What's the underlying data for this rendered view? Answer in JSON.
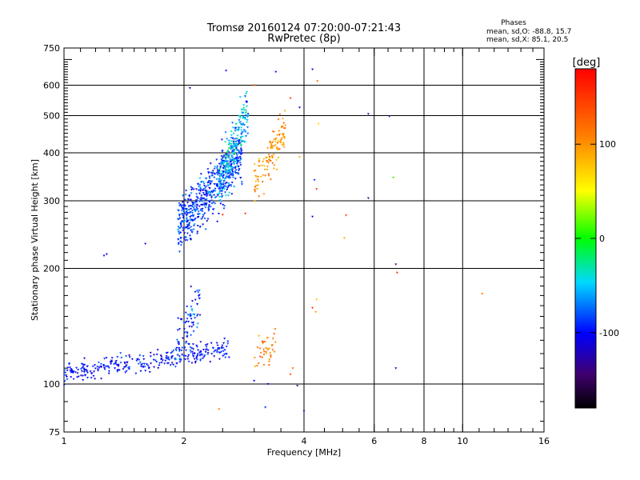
{
  "header": {
    "title_line1": "Tromsø 20160124 07:20:00-07:21:43",
    "title_line2": "RwPretec (8p)",
    "phases_title": "Phases",
    "phases_o": "mean, sd,O: -88.8, 15.7",
    "phases_x": "mean, sd,X:  85.1, 20.5"
  },
  "colorbar": {
    "unit_label": "[deg]",
    "tick_labels": [
      "100",
      "0",
      "-100"
    ],
    "tick_values": [
      100,
      0,
      -100
    ],
    "range": [
      -180,
      180
    ]
  },
  "chart_data": {
    "type": "scatter",
    "title": "Tromsø 20160124 07:20:00-07:21:43",
    "subtitle": "RwPretec (8p)",
    "xlabel": "Frequency [MHz]",
    "ylabel": "Stationary phase Virtual Height [km]",
    "x_scale": "log",
    "y_scale": "log",
    "xlim": [
      1,
      16
    ],
    "ylim": [
      75,
      750
    ],
    "x_ticks": [
      1,
      2,
      4,
      6,
      8,
      10,
      16
    ],
    "x_tick_labels": [
      "1",
      "2",
      "4",
      "6",
      "8",
      "10",
      "16"
    ],
    "x_grid": [
      2,
      4,
      6,
      8,
      10
    ],
    "y_ticks": [
      75,
      100,
      200,
      300,
      400,
      500,
      600,
      750
    ],
    "y_tick_labels": [
      "75",
      "100",
      "200",
      "300",
      "400",
      "500",
      "600",
      "750"
    ],
    "y_grid": [
      100,
      200,
      300,
      400,
      500,
      600
    ],
    "color_encoding": "phase [deg]",
    "clusters": [
      {
        "f_min": 1.0,
        "f_max": 2.6,
        "h_start": 106,
        "h_end": 124,
        "spread": 0.05,
        "phase_mean": -100,
        "phase_sd": 12,
        "n": 300
      },
      {
        "f_min": 1.9,
        "f_max": 2.2,
        "h_start": 122,
        "h_end": 165,
        "spread": 0.12,
        "phase_mean": -90,
        "phase_sd": 20,
        "n": 80
      },
      {
        "f_min": 3.0,
        "f_max": 3.4,
        "h_start": 118,
        "h_end": 128,
        "spread": 0.08,
        "phase_mean": 110,
        "phase_sd": 15,
        "n": 40
      },
      {
        "f_min": 1.93,
        "f_max": 2.8,
        "h_start": 255,
        "h_end": 400,
        "spread": 0.13,
        "phase_mean": -88,
        "phase_sd": 16,
        "n": 550
      },
      {
        "f_min": 2.45,
        "f_max": 2.9,
        "h_start": 330,
        "h_end": 520,
        "spread": 0.13,
        "phase_mean": -55,
        "phase_sd": 22,
        "n": 250
      },
      {
        "f_min": 3.0,
        "f_max": 3.6,
        "h_start": 330,
        "h_end": 470,
        "spread": 0.11,
        "phase_mean": 100,
        "phase_sd": 18,
        "n": 120
      }
    ],
    "scattered_points": [
      {
        "f": 1.28,
        "h": 218,
        "phase": -110
      },
      {
        "f": 1.26,
        "h": 216,
        "phase": -105
      },
      {
        "f": 1.6,
        "h": 232,
        "phase": -115
      },
      {
        "f": 2.07,
        "h": 590,
        "phase": -120
      },
      {
        "f": 2.55,
        "h": 655,
        "phase": -100
      },
      {
        "f": 3.4,
        "h": 650,
        "phase": -105
      },
      {
        "f": 3.0,
        "h": 600,
        "phase": 120
      },
      {
        "f": 3.7,
        "h": 555,
        "phase": 150
      },
      {
        "f": 3.9,
        "h": 525,
        "phase": -110
      },
      {
        "f": 4.2,
        "h": 660,
        "phase": -110
      },
      {
        "f": 4.32,
        "h": 615,
        "phase": 120
      },
      {
        "f": 4.35,
        "h": 476,
        "phase": 70
      },
      {
        "f": 4.25,
        "h": 340,
        "phase": -90
      },
      {
        "f": 4.3,
        "h": 322,
        "phase": 150
      },
      {
        "f": 4.2,
        "h": 273,
        "phase": -110
      },
      {
        "f": 5.1,
        "h": 275,
        "phase": 140
      },
      {
        "f": 5.05,
        "h": 240,
        "phase": 90
      },
      {
        "f": 5.8,
        "h": 505,
        "phase": -120
      },
      {
        "f": 5.8,
        "h": 305,
        "phase": -130
      },
      {
        "f": 6.55,
        "h": 498,
        "phase": -125
      },
      {
        "f": 6.7,
        "h": 345,
        "phase": 10
      },
      {
        "f": 6.8,
        "h": 205,
        "phase": -140
      },
      {
        "f": 6.85,
        "h": 195,
        "phase": 160
      },
      {
        "f": 6.8,
        "h": 110,
        "phase": -110
      },
      {
        "f": 11.2,
        "h": 172,
        "phase": 110
      },
      {
        "f": 4.3,
        "h": 166,
        "phase": 80
      },
      {
        "f": 4.2,
        "h": 158,
        "phase": 150
      },
      {
        "f": 4.28,
        "h": 154,
        "phase": 90
      },
      {
        "f": 3.75,
        "h": 110,
        "phase": 120
      },
      {
        "f": 3.7,
        "h": 106,
        "phase": 140
      },
      {
        "f": 3.85,
        "h": 99,
        "phase": -140
      },
      {
        "f": 3.0,
        "h": 102,
        "phase": -100
      },
      {
        "f": 3.25,
        "h": 100,
        "phase": -110
      },
      {
        "f": 4.0,
        "h": 85,
        "phase": -120
      },
      {
        "f": 3.2,
        "h": 87,
        "phase": -90
      },
      {
        "f": 2.45,
        "h": 86,
        "phase": 110
      },
      {
        "f": 2.5,
        "h": 276,
        "phase": 160
      },
      {
        "f": 2.85,
        "h": 278,
        "phase": 150
      },
      {
        "f": 3.9,
        "h": 390,
        "phase": 90
      }
    ]
  }
}
